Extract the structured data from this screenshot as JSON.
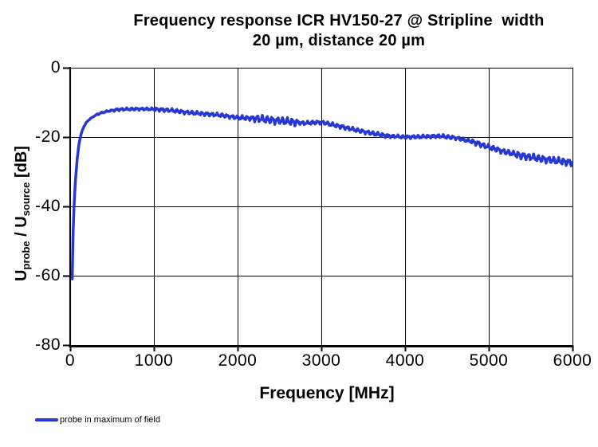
{
  "chart_data": {
    "type": "line",
    "title": "Frequency response ICR HV150-27 @ Stripline  width\n20 µm, distance 20 µm",
    "xlabel": "Frequency [MHz]",
    "ylabel": "U_probe / U_source [dB]",
    "ylabel_parts": {
      "u1": "U",
      "sub1": "probe",
      "mid": " / U",
      "sub2": "source",
      "end": " [dB]"
    },
    "xlim": [
      0,
      6000
    ],
    "ylim": [
      -80,
      0
    ],
    "xtick_labels": [
      "0",
      "1000",
      "2000",
      "3000",
      "4000",
      "5000",
      "6000"
    ],
    "ytick_labels": [
      "0",
      "-20",
      "-40",
      "-60",
      "-80"
    ],
    "grid": true,
    "legend_position": "bottom-left",
    "series": [
      {
        "name": "probe in maximum of field",
        "color": "#2737d3",
        "envelope_points": [
          [
            25,
            -61
          ],
          [
            28,
            -55
          ],
          [
            32,
            -50
          ],
          [
            37,
            -46
          ],
          [
            43,
            -42
          ],
          [
            50,
            -38
          ],
          [
            58,
            -34.5
          ],
          [
            68,
            -31
          ],
          [
            80,
            -27.5
          ],
          [
            92,
            -24.5
          ],
          [
            105,
            -22
          ],
          [
            120,
            -20.2
          ],
          [
            140,
            -18.4
          ],
          [
            165,
            -16.9
          ],
          [
            200,
            -15.6
          ],
          [
            240,
            -14.7
          ],
          [
            290,
            -13.9
          ],
          [
            350,
            -13.2
          ],
          [
            420,
            -12.7
          ],
          [
            500,
            -12.3
          ],
          [
            600,
            -12.0
          ],
          [
            800,
            -11.9
          ],
          [
            1000,
            -11.95
          ],
          [
            1200,
            -12.3
          ],
          [
            1400,
            -12.9
          ],
          [
            1600,
            -13.3
          ],
          [
            1800,
            -13.7
          ],
          [
            2000,
            -14.4
          ],
          [
            2200,
            -14.6
          ],
          [
            2400,
            -15.1
          ],
          [
            2600,
            -15.5
          ],
          [
            2800,
            -16.0
          ],
          [
            3000,
            -15.7
          ],
          [
            3200,
            -16.8
          ],
          [
            3400,
            -17.9
          ],
          [
            3600,
            -18.9
          ],
          [
            3800,
            -19.7
          ],
          [
            4000,
            -20.0
          ],
          [
            4200,
            -19.9
          ],
          [
            4400,
            -19.7
          ],
          [
            4600,
            -20.2
          ],
          [
            4800,
            -21.3
          ],
          [
            5000,
            -22.9
          ],
          [
            5200,
            -24.3
          ],
          [
            5400,
            -25.4
          ],
          [
            5600,
            -26.2
          ],
          [
            5800,
            -26.8
          ],
          [
            6000,
            -27.4
          ]
        ],
        "ripple": {
          "components": [
            {
              "period": 60,
              "weight": 0.7,
              "phase": 0
            },
            {
              "period": 27,
              "weight": 0.45,
              "phase": 1.3
            }
          ],
          "amplitude_regions": [
            [
              25,
              300,
              0.1
            ],
            [
              300,
              520,
              0.22
            ],
            [
              520,
              1000,
              0.35
            ],
            [
              1000,
              2000,
              0.5
            ],
            [
              2000,
              2200,
              0.6
            ],
            [
              2200,
              2720,
              1.0
            ],
            [
              2720,
              3100,
              0.5
            ],
            [
              3100,
              3800,
              0.55
            ],
            [
              3800,
              4400,
              0.45
            ],
            [
              4400,
              4800,
              0.5
            ],
            [
              4800,
              5300,
              0.7
            ],
            [
              5300,
              6001,
              0.95
            ]
          ]
        }
      }
    ]
  }
}
